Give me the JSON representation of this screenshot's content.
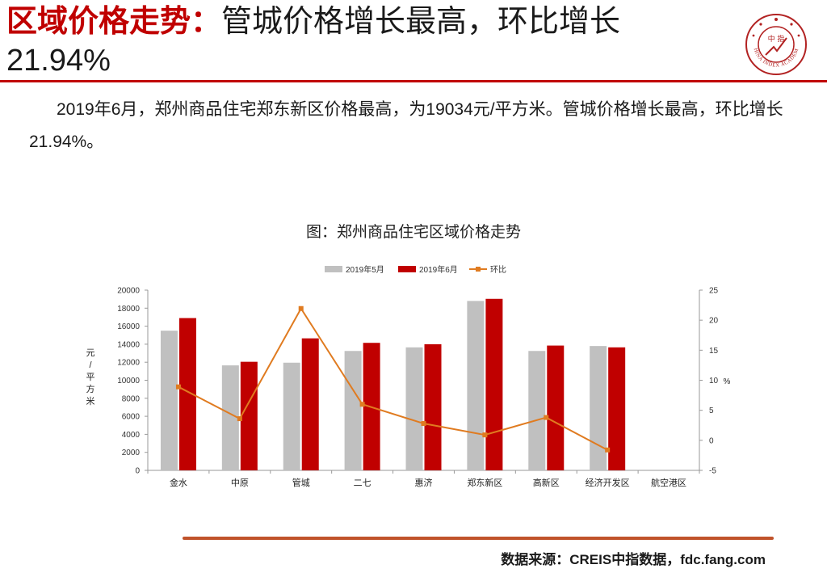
{
  "header": {
    "title_red": "区域价格走势",
    "title_colon": "：",
    "title_rest": "管城价格增长最高，环比增长",
    "title_line2": "21.94%",
    "logo_name": "china-index-academy-seal",
    "logo_text_outer": "CHINA INDEX ACADEMY",
    "logo_text_center": "中 指"
  },
  "body": {
    "paragraph": "2019年6月，郑州商品住宅郑东新区价格最高，为19034元/平方米。管城价格增长最高，环比增长21.94%。"
  },
  "chart_data": {
    "type": "bar",
    "title": "图：郑州商品住宅区域价格走势",
    "categories": [
      "金水",
      "中原",
      "管城",
      "二七",
      "惠济",
      "郑东新区",
      "高新区",
      "经济开发区",
      "航空港区"
    ],
    "series": [
      {
        "name": "2019年5月",
        "type": "bar",
        "axis": "left",
        "color": "#c0c0c0",
        "values": [
          15500,
          11650,
          11950,
          13250,
          13650,
          18800,
          13250,
          13800,
          null
        ]
      },
      {
        "name": "2019年6月",
        "type": "bar",
        "axis": "left",
        "color": "#c00000",
        "values": [
          16900,
          12050,
          14650,
          14150,
          14000,
          19034,
          13850,
          13650,
          null
        ]
      },
      {
        "name": "环比",
        "type": "line",
        "axis": "right",
        "color": "#e07b20",
        "values": [
          8.9,
          3.6,
          21.94,
          6.0,
          2.8,
          0.9,
          3.8,
          -1.6,
          null
        ]
      }
    ],
    "ylabel": "元/平方米",
    "y2label": "%",
    "ylim": [
      0,
      20000
    ],
    "yticks": [
      0,
      2000,
      4000,
      6000,
      8000,
      10000,
      12000,
      14000,
      16000,
      18000,
      20000
    ],
    "y2lim": [
      -5,
      25
    ],
    "y2ticks": [
      -5,
      0,
      5,
      10,
      15,
      20,
      25
    ],
    "legend_position": "top-center",
    "grid": false
  },
  "footer": {
    "source": "数据来源：CREIS中指数据，fdc.fang.com"
  }
}
